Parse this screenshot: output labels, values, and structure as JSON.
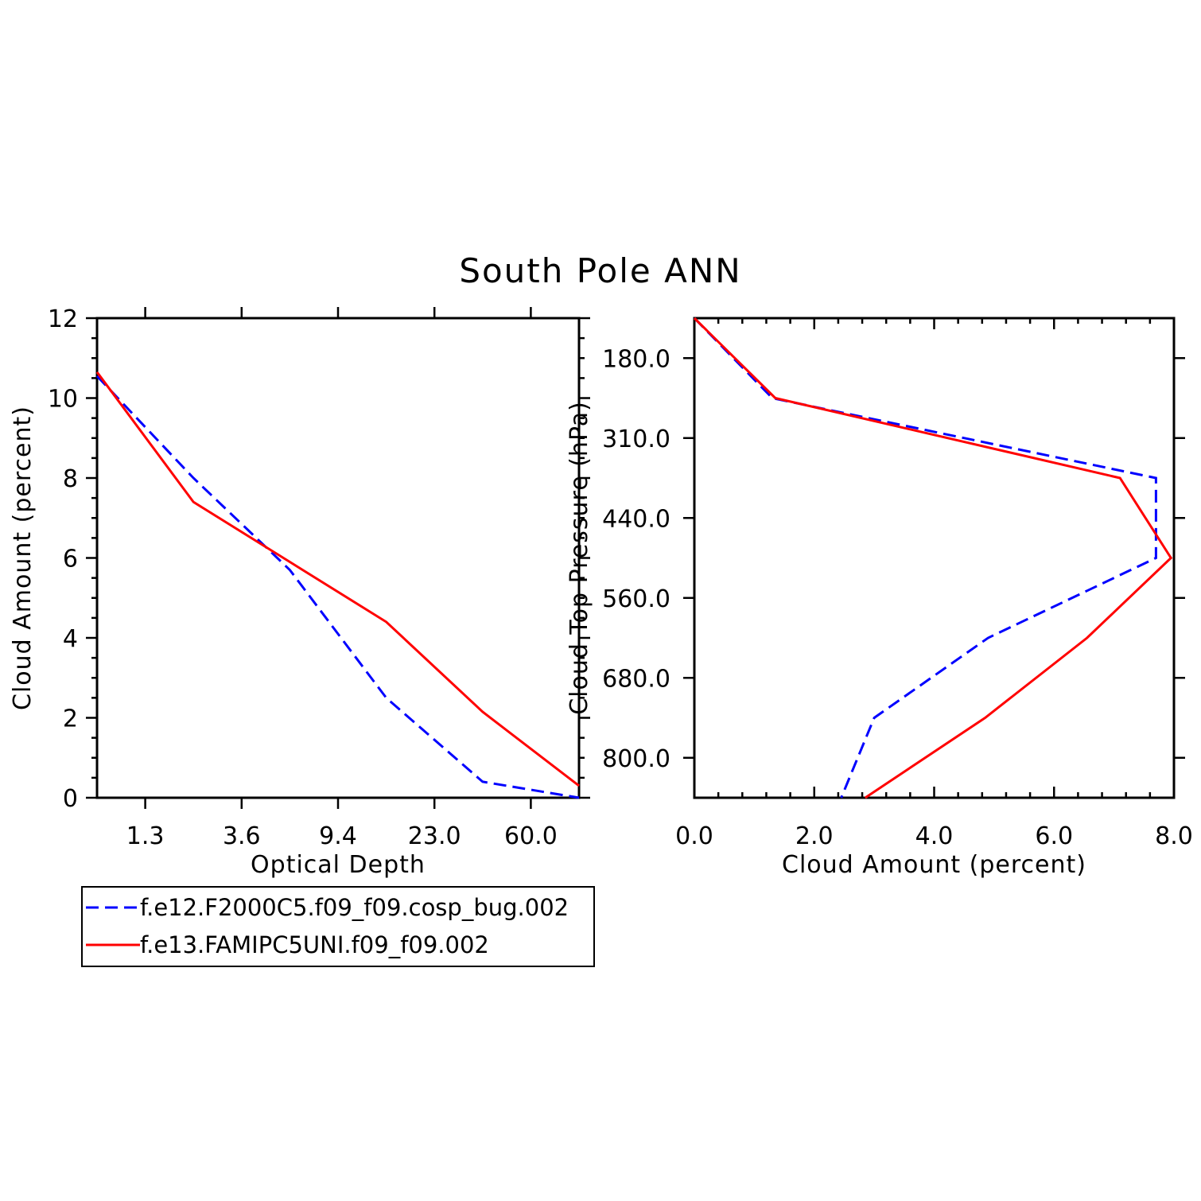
{
  "title": "South Pole ANN",
  "colors": {
    "series1": "#0000ff",
    "series2": "#ff0000"
  },
  "legend": {
    "items": [
      {
        "label": "f.e12.F2000C5.f09_f09.cosp_bug.002",
        "color": "#0000ff",
        "style": "dashed"
      },
      {
        "label": "f.e13.FAMIPC5UNI.f09_f09.002",
        "color": "#ff0000",
        "style": "solid"
      }
    ]
  },
  "chart_data": [
    {
      "type": "line",
      "xlabel": "Optical Depth",
      "ylabel": "Cloud Amount (percent)",
      "x_tick_labels": [
        "1.3",
        "3.6",
        "9.4",
        "23.0",
        "60.0"
      ],
      "y_ticks": [
        0,
        2,
        4,
        6,
        8,
        10,
        12
      ],
      "ylim": [
        0,
        12
      ],
      "series": [
        {
          "name": "f.e12.F2000C5.f09_f09.cosp_bug.002",
          "color": "#0000ff",
          "style": "dashed",
          "values": [
            10.55,
            8.0,
            5.7,
            2.5,
            0.4,
            0.0
          ]
        },
        {
          "name": "f.e13.FAMIPC5UNI.f09_f09.002",
          "color": "#ff0000",
          "style": "solid",
          "values": [
            10.65,
            7.4,
            5.9,
            4.4,
            2.15,
            0.3
          ]
        }
      ]
    },
    {
      "type": "line",
      "xlabel": "Cloud Amount (percent)",
      "ylabel": "Cloud Top Pressure (hPa)",
      "x_ticks": [
        "0.0",
        "2.0",
        "4.0",
        "6.0",
        "8.0"
      ],
      "xlim": [
        0,
        8
      ],
      "y_tick_labels": [
        "180.0",
        "310.0",
        "440.0",
        "560.0",
        "680.0",
        "800.0"
      ],
      "series": [
        {
          "name": "f.e12.F2000C5.f09_f09.cosp_bug.002",
          "color": "#0000ff",
          "style": "dashed",
          "values": [
            0.0,
            1.3,
            7.7,
            7.7,
            4.9,
            3.0,
            2.45
          ]
        },
        {
          "name": "f.e13.FAMIPC5UNI.f09_f09.002",
          "color": "#ff0000",
          "style": "solid",
          "values": [
            0.0,
            1.35,
            7.1,
            7.95,
            6.55,
            4.85,
            2.85
          ]
        }
      ]
    }
  ]
}
